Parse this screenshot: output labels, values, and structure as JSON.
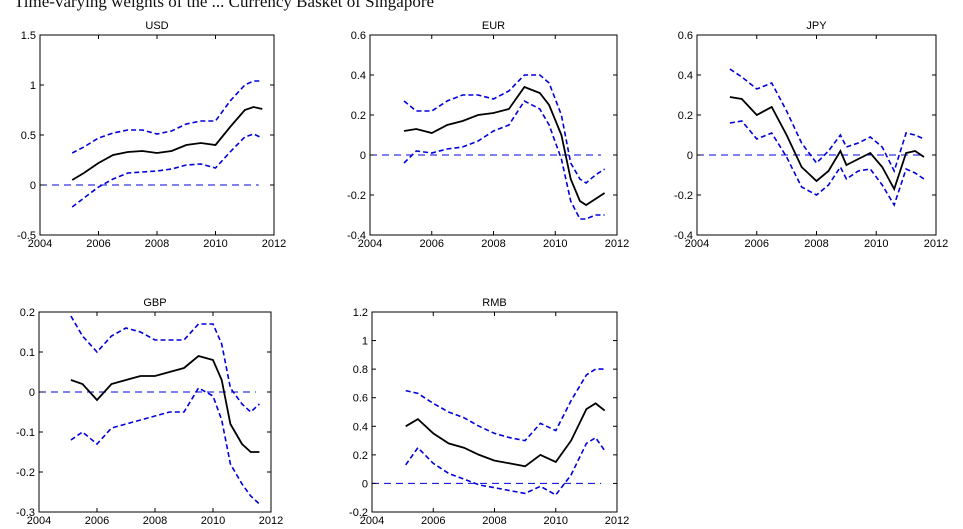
{
  "figure_caption_partial": "Time-varying weights of the ... Currency Basket of Singapore",
  "colors": {
    "estimate": "#000000",
    "band": "#0000dd",
    "zero_line": "#0000dd"
  },
  "chart_data": [
    {
      "type": "line",
      "title": "USD",
      "xlim": [
        2004,
        2012
      ],
      "ylim": [
        -0.5,
        1.5
      ],
      "xticks": [
        "2004",
        "2006",
        "2008",
        "2010",
        "2012"
      ],
      "yticks": [
        "-0.5",
        "0",
        "0.5",
        "1",
        "1.5"
      ],
      "x": [
        2005.1,
        2005.5,
        2006.0,
        2006.5,
        2007.0,
        2007.5,
        2008.0,
        2008.5,
        2009.0,
        2009.5,
        2010.0,
        2010.5,
        2011.0,
        2011.3,
        2011.6
      ],
      "series": [
        {
          "values": [
            0.05,
            0.12,
            0.22,
            0.3,
            0.33,
            0.34,
            0.32,
            0.34,
            0.4,
            0.42,
            0.4,
            0.58,
            0.75,
            0.78,
            0.76
          ]
        },
        {
          "values": [
            0.32,
            0.38,
            0.47,
            0.52,
            0.55,
            0.55,
            0.51,
            0.54,
            0.61,
            0.64,
            0.64,
            0.84,
            1.0,
            1.04,
            1.04
          ]
        },
        {
          "values": [
            -0.22,
            -0.13,
            -0.02,
            0.06,
            0.12,
            0.13,
            0.14,
            0.16,
            0.2,
            0.21,
            0.17,
            0.33,
            0.48,
            0.51,
            0.47
          ]
        }
      ],
      "reference_line_y": 0
    },
    {
      "type": "line",
      "title": "EUR",
      "xlim": [
        2004,
        2012
      ],
      "ylim": [
        -0.4,
        0.6
      ],
      "xticks": [
        "2004",
        "2006",
        "2008",
        "2010",
        "2012"
      ],
      "yticks": [
        "-0.4",
        "-0.2",
        "0",
        "0.2",
        "0.4",
        "0.6"
      ],
      "x": [
        2005.1,
        2005.5,
        2006.0,
        2006.5,
        2007.0,
        2007.5,
        2008.0,
        2008.5,
        2009.0,
        2009.5,
        2009.8,
        2010.2,
        2010.5,
        2010.8,
        2011.0,
        2011.3,
        2011.6
      ],
      "series": [
        {
          "values": [
            0.12,
            0.13,
            0.11,
            0.15,
            0.17,
            0.2,
            0.21,
            0.23,
            0.34,
            0.31,
            0.25,
            0.1,
            -0.12,
            -0.23,
            -0.25,
            -0.22,
            -0.19
          ]
        },
        {
          "values": [
            0.27,
            0.22,
            0.22,
            0.27,
            0.3,
            0.3,
            0.28,
            0.32,
            0.4,
            0.4,
            0.36,
            0.2,
            -0.04,
            -0.12,
            -0.14,
            -0.1,
            -0.07
          ]
        },
        {
          "values": [
            -0.04,
            0.02,
            0.01,
            0.03,
            0.04,
            0.07,
            0.12,
            0.15,
            0.27,
            0.23,
            0.15,
            -0.02,
            -0.23,
            -0.32,
            -0.32,
            -0.3,
            -0.3
          ]
        }
      ],
      "reference_line_y": 0
    },
    {
      "type": "line",
      "title": "JPY",
      "xlim": [
        2004,
        2012
      ],
      "ylim": [
        -0.4,
        0.6
      ],
      "xticks": [
        "2004",
        "2006",
        "2008",
        "2010",
        "2012"
      ],
      "yticks": [
        "-0.4",
        "-0.2",
        "0",
        "0.2",
        "0.4",
        "0.6"
      ],
      "x": [
        2005.1,
        2005.5,
        2006.0,
        2006.5,
        2007.0,
        2007.5,
        2008.0,
        2008.4,
        2008.8,
        2009.0,
        2009.4,
        2009.8,
        2010.2,
        2010.6,
        2011.0,
        2011.3,
        2011.6
      ],
      "series": [
        {
          "values": [
            0.29,
            0.28,
            0.2,
            0.24,
            0.1,
            -0.06,
            -0.13,
            -0.08,
            0.02,
            -0.05,
            -0.02,
            0.01,
            -0.06,
            -0.17,
            0.01,
            0.02,
            -0.01
          ]
        },
        {
          "values": [
            0.43,
            0.39,
            0.33,
            0.36,
            0.22,
            0.06,
            -0.04,
            0.02,
            0.1,
            0.04,
            0.06,
            0.09,
            0.04,
            -0.08,
            0.11,
            0.1,
            0.08
          ]
        },
        {
          "values": [
            0.16,
            0.17,
            0.08,
            0.11,
            -0.01,
            -0.16,
            -0.2,
            -0.15,
            -0.06,
            -0.12,
            -0.08,
            -0.07,
            -0.15,
            -0.25,
            -0.07,
            -0.09,
            -0.12
          ]
        }
      ],
      "reference_line_y": 0
    },
    {
      "type": "line",
      "title": "GBP",
      "xlim": [
        2004,
        2012
      ],
      "ylim": [
        -0.3,
        0.2
      ],
      "xticks": [
        "2004",
        "2006",
        "2008",
        "2010",
        "2012"
      ],
      "yticks": [
        "-0.3",
        "-0.2",
        "-0.1",
        "0",
        "0.1",
        "0.2"
      ],
      "x": [
        2005.1,
        2005.5,
        2006.0,
        2006.5,
        2007.0,
        2007.5,
        2008.0,
        2008.5,
        2009.0,
        2009.5,
        2010.0,
        2010.3,
        2010.6,
        2011.0,
        2011.3,
        2011.6
      ],
      "series": [
        {
          "values": [
            0.03,
            0.02,
            -0.02,
            0.02,
            0.03,
            0.04,
            0.04,
            0.05,
            0.06,
            0.09,
            0.08,
            0.03,
            -0.08,
            -0.13,
            -0.15,
            -0.15
          ]
        },
        {
          "values": [
            0.19,
            0.14,
            0.1,
            0.14,
            0.16,
            0.15,
            0.13,
            0.13,
            0.13,
            0.17,
            0.17,
            0.12,
            0.01,
            -0.03,
            -0.05,
            -0.03
          ]
        },
        {
          "values": [
            -0.12,
            -0.1,
            -0.13,
            -0.09,
            -0.08,
            -0.07,
            -0.06,
            -0.05,
            -0.05,
            0.01,
            -0.01,
            -0.07,
            -0.18,
            -0.23,
            -0.26,
            -0.28
          ]
        }
      ],
      "reference_line_y": 0
    },
    {
      "type": "line",
      "title": "RMB",
      "xlim": [
        2004,
        2012
      ],
      "ylim": [
        -0.2,
        1.2
      ],
      "xticks": [
        "2004",
        "2006",
        "2008",
        "2010",
        "2012"
      ],
      "yticks": [
        "-0.2",
        "0",
        "0.2",
        "0.4",
        "0.6",
        "0.8",
        "1",
        "1.2"
      ],
      "x": [
        2005.1,
        2005.5,
        2006.0,
        2006.5,
        2007.0,
        2007.5,
        2008.0,
        2008.5,
        2009.0,
        2009.5,
        2010.0,
        2010.5,
        2011.0,
        2011.3,
        2011.6
      ],
      "series": [
        {
          "values": [
            0.4,
            0.45,
            0.35,
            0.28,
            0.25,
            0.2,
            0.16,
            0.14,
            0.12,
            0.2,
            0.15,
            0.3,
            0.52,
            0.56,
            0.51
          ]
        },
        {
          "values": [
            0.65,
            0.63,
            0.56,
            0.5,
            0.46,
            0.4,
            0.35,
            0.32,
            0.3,
            0.42,
            0.37,
            0.58,
            0.76,
            0.8,
            0.8
          ]
        },
        {
          "values": [
            0.13,
            0.25,
            0.14,
            0.07,
            0.03,
            -0.01,
            -0.03,
            -0.05,
            -0.07,
            -0.02,
            -0.08,
            0.06,
            0.28,
            0.32,
            0.23
          ]
        }
      ],
      "reference_line_y": 0
    }
  ]
}
